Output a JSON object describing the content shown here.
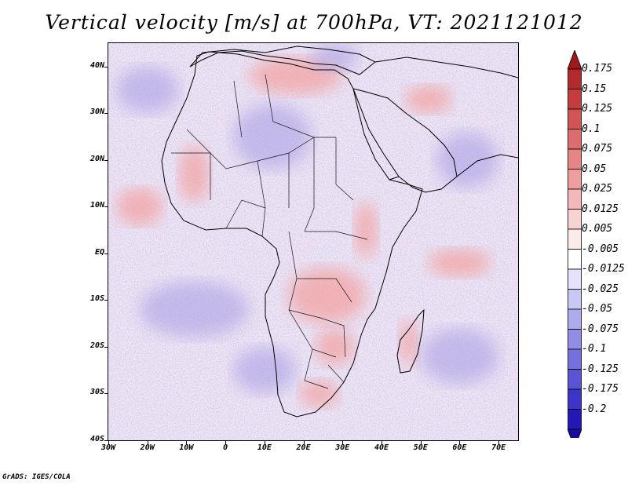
{
  "title": "Vertical velocity [m/s] at 700hPa, VT: 2021121012",
  "credit": "GrADS: IGES/COLA",
  "map": {
    "projection": "latlon",
    "lon_range": [
      -30,
      75
    ],
    "lat_range": [
      -40,
      45
    ],
    "lat_ticks": [
      {
        "value": 40,
        "label": "40N"
      },
      {
        "value": 30,
        "label": "30N"
      },
      {
        "value": 20,
        "label": "20N"
      },
      {
        "value": 10,
        "label": "10N"
      },
      {
        "value": 0,
        "label": "EQ"
      },
      {
        "value": -10,
        "label": "10S"
      },
      {
        "value": -20,
        "label": "20S"
      },
      {
        "value": -30,
        "label": "30S"
      },
      {
        "value": -40,
        "label": "40S"
      }
    ],
    "lon_ticks": [
      {
        "value": -30,
        "label": "30W"
      },
      {
        "value": -20,
        "label": "20W"
      },
      {
        "value": -10,
        "label": "10W"
      },
      {
        "value": 0,
        "label": "0"
      },
      {
        "value": 10,
        "label": "10E"
      },
      {
        "value": 20,
        "label": "20E"
      },
      {
        "value": 30,
        "label": "30E"
      },
      {
        "value": 40,
        "label": "40E"
      },
      {
        "value": 50,
        "label": "50E"
      },
      {
        "value": 60,
        "label": "60E"
      },
      {
        "value": 70,
        "label": "70E"
      }
    ],
    "background_color": "#ecebfb",
    "field_regions": [
      {
        "kind": "ascent",
        "lon": 36,
        "lat": 5,
        "rx": 3,
        "ry": 6
      },
      {
        "kind": "ascent",
        "lon": 26,
        "lat": -9,
        "rx": 10,
        "ry": 6
      },
      {
        "kind": "ascent",
        "lon": 28,
        "lat": -20,
        "rx": 5,
        "ry": 4
      },
      {
        "kind": "ascent",
        "lon": 24,
        "lat": -30,
        "rx": 5,
        "ry": 3
      },
      {
        "kind": "ascent",
        "lon": 47,
        "lat": -19,
        "rx": 2.5,
        "ry": 5
      },
      {
        "kind": "ascent",
        "lon": 52,
        "lat": 33,
        "rx": 6,
        "ry": 3
      },
      {
        "kind": "ascent",
        "lon": 18,
        "lat": 38,
        "rx": 12,
        "ry": 4
      },
      {
        "kind": "ascent",
        "lon": -22,
        "lat": 10,
        "rx": 6,
        "ry": 4
      },
      {
        "kind": "ascent",
        "lon": 60,
        "lat": -2,
        "rx": 8,
        "ry": 3
      },
      {
        "kind": "ascent",
        "lon": -8,
        "lat": 17,
        "rx": 4,
        "ry": 6
      },
      {
        "kind": "descent",
        "lon": -8,
        "lat": -12,
        "rx": 14,
        "ry": 6
      },
      {
        "kind": "descent",
        "lon": 12,
        "lat": 25,
        "rx": 10,
        "ry": 7
      },
      {
        "kind": "descent",
        "lon": 62,
        "lat": 20,
        "rx": 8,
        "ry": 6
      },
      {
        "kind": "descent",
        "lon": 60,
        "lat": -22,
        "rx": 10,
        "ry": 6
      },
      {
        "kind": "descent",
        "lon": -20,
        "lat": 35,
        "rx": 8,
        "ry": 5
      },
      {
        "kind": "descent",
        "lon": 10,
        "lat": -25,
        "rx": 8,
        "ry": 5
      },
      {
        "kind": "descent",
        "lon": 28,
        "lat": 42,
        "rx": 6,
        "ry": 3
      }
    ]
  },
  "colorbar": {
    "levels": [
      {
        "label": "0.175",
        "color": "#b22a2a"
      },
      {
        "label": "0.15",
        "color": "#c43d3d"
      },
      {
        "label": "0.125",
        "color": "#d25454"
      },
      {
        "label": "0.1",
        "color": "#dd6c6c"
      },
      {
        "label": "0.075",
        "color": "#e78585"
      },
      {
        "label": "0.05",
        "color": "#ee9e9e"
      },
      {
        "label": "0.025",
        "color": "#f4b8b8"
      },
      {
        "label": "0.0125",
        "color": "#f9d2d2"
      },
      {
        "label": "0.005",
        "color": "#fdeaea"
      },
      {
        "label": "-0.005",
        "color": "#ffffff"
      },
      {
        "label": "-0.0125",
        "color": "#e4e3fa"
      },
      {
        "label": "-0.025",
        "color": "#c9c7f4"
      },
      {
        "label": "-0.05",
        "color": "#adaaee"
      },
      {
        "label": "-0.075",
        "color": "#918de6"
      },
      {
        "label": "-0.1",
        "color": "#7570de"
      },
      {
        "label": "-0.125",
        "color": "#5953d5"
      },
      {
        "label": "-0.175",
        "color": "#3d35c9"
      },
      {
        "label": "-0.2",
        "color": "#2318b5"
      }
    ],
    "top_color": "#a01818",
    "bottom_color": "#1a0a9e"
  }
}
